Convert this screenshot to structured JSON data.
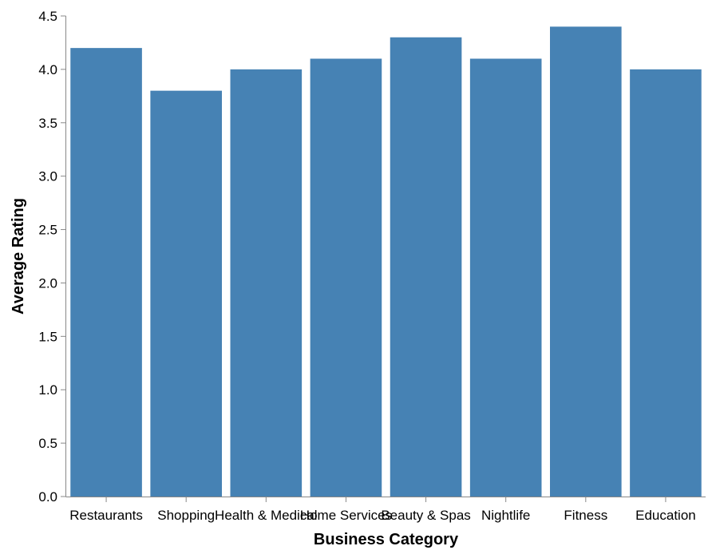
{
  "chart_data": {
    "type": "bar",
    "title": "",
    "xlabel": "Business Category",
    "ylabel": "Average Rating",
    "categories": [
      "Restaurants",
      "Shopping",
      "Health & Medical",
      "Home Services",
      "Beauty & Spas",
      "Nightlife",
      "Fitness",
      "Education"
    ],
    "values": [
      4.2,
      3.8,
      4.0,
      4.1,
      4.3,
      4.1,
      4.4,
      4.0
    ],
    "ylim": [
      0,
      4.5
    ],
    "yticks": [
      "0.0",
      "0.5",
      "1.0",
      "1.5",
      "2.0",
      "2.5",
      "3.0",
      "3.5",
      "4.0",
      "4.5"
    ],
    "grid": false,
    "legend": "none",
    "bar_color": "#4682b4",
    "axis_color": "#888888"
  }
}
